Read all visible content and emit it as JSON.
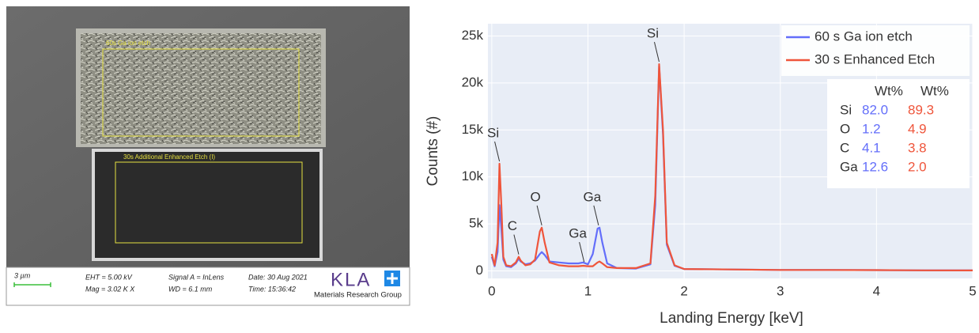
{
  "sem_image": {
    "label_top": "60s Ga ion etch",
    "label_bottom": "30s Additional Enhanced Etch (I)",
    "scale_bar": "3 µm",
    "eht": "EHT =  5.00 kV",
    "mag": "Mag =    3.02 K X",
    "signal": "Signal A = InLens",
    "wd": "WD =  6.1 mm",
    "date": "Date: 30 Aug 2021",
    "time": "Time: 15:36:42",
    "logo": "KLA",
    "group": "Materials Research Group"
  },
  "chart_data": {
    "type": "line",
    "x_label": "Landing Energy [keV]",
    "y_label": "Counts (#)",
    "xlim": [
      -0.04,
      5
    ],
    "ylim": [
      -800,
      26300
    ],
    "xticks": [
      0,
      1,
      2,
      3,
      4,
      5
    ],
    "yticks": [
      0,
      {
        "value": 5000,
        "label": "5k"
      },
      {
        "value": 10000,
        "label": "10k"
      },
      {
        "value": 15000,
        "label": "15k"
      },
      {
        "value": 20000,
        "label": "20k"
      },
      {
        "value": 25000,
        "label": "25k"
      }
    ],
    "grid": true,
    "legend": "top-right",
    "x": [
      0,
      0.03,
      0.06,
      0.08,
      0.1,
      0.12,
      0.15,
      0.2,
      0.25,
      0.28,
      0.3,
      0.35,
      0.4,
      0.45,
      0.5,
      0.52,
      0.55,
      0.6,
      0.7,
      0.8,
      0.9,
      0.95,
      1.0,
      1.05,
      1.1,
      1.12,
      1.15,
      1.2,
      1.3,
      1.5,
      1.65,
      1.7,
      1.74,
      1.78,
      1.82,
      1.9,
      2.0,
      2.5,
      3,
      3.5,
      4,
      4.5,
      5
    ],
    "series": [
      {
        "name": "60 s Ga ion etch",
        "color": "#636efa",
        "values": [
          1500,
          500,
          2000,
          7000,
          4500,
          1200,
          500,
          400,
          800,
          1300,
          1000,
          700,
          800,
          1100,
          1800,
          2000,
          1700,
          1000,
          900,
          800,
          800,
          900,
          700,
          1800,
          4500,
          4600,
          3000,
          800,
          300,
          250,
          700,
          7000,
          21800,
          14500,
          2800,
          550,
          200,
          150,
          100,
          100,
          80,
          60,
          50
        ]
      },
      {
        "name": "30 s Enhanced Etch",
        "color": "#ef553b",
        "values": [
          1800,
          600,
          3000,
          11400,
          7000,
          1500,
          600,
          500,
          900,
          1500,
          1100,
          600,
          700,
          1200,
          4200,
          4600,
          3000,
          900,
          600,
          500,
          500,
          550,
          500,
          500,
          900,
          1000,
          800,
          400,
          300,
          300,
          800,
          8000,
          22000,
          15000,
          3000,
          600,
          200,
          150,
          100,
          100,
          80,
          60,
          50
        ]
      }
    ],
    "annotations": [
      {
        "text": "Si",
        "x": 0.08,
        "y": 11400
      },
      {
        "text": "C",
        "x": 0.28,
        "y": 1500
      },
      {
        "text": "O",
        "x": 0.52,
        "y": 4600
      },
      {
        "text": "Ga",
        "x": 0.96,
        "y": 700
      },
      {
        "text": "Ga",
        "x": 1.11,
        "y": 4600
      },
      {
        "text": "Si",
        "x": 1.74,
        "y": 22000
      }
    ],
    "table": {
      "columns": [
        "Wt%",
        "Wt%"
      ],
      "rows": [
        {
          "element": "Si",
          "values": [
            "82.0",
            "89.3"
          ]
        },
        {
          "element": "O",
          "values": [
            "1.2",
            "4.9"
          ]
        },
        {
          "element": "C",
          "values": [
            "4.1",
            "3.8"
          ]
        },
        {
          "element": "Ga",
          "values": [
            "12.6",
            "2.0"
          ]
        }
      ]
    }
  }
}
